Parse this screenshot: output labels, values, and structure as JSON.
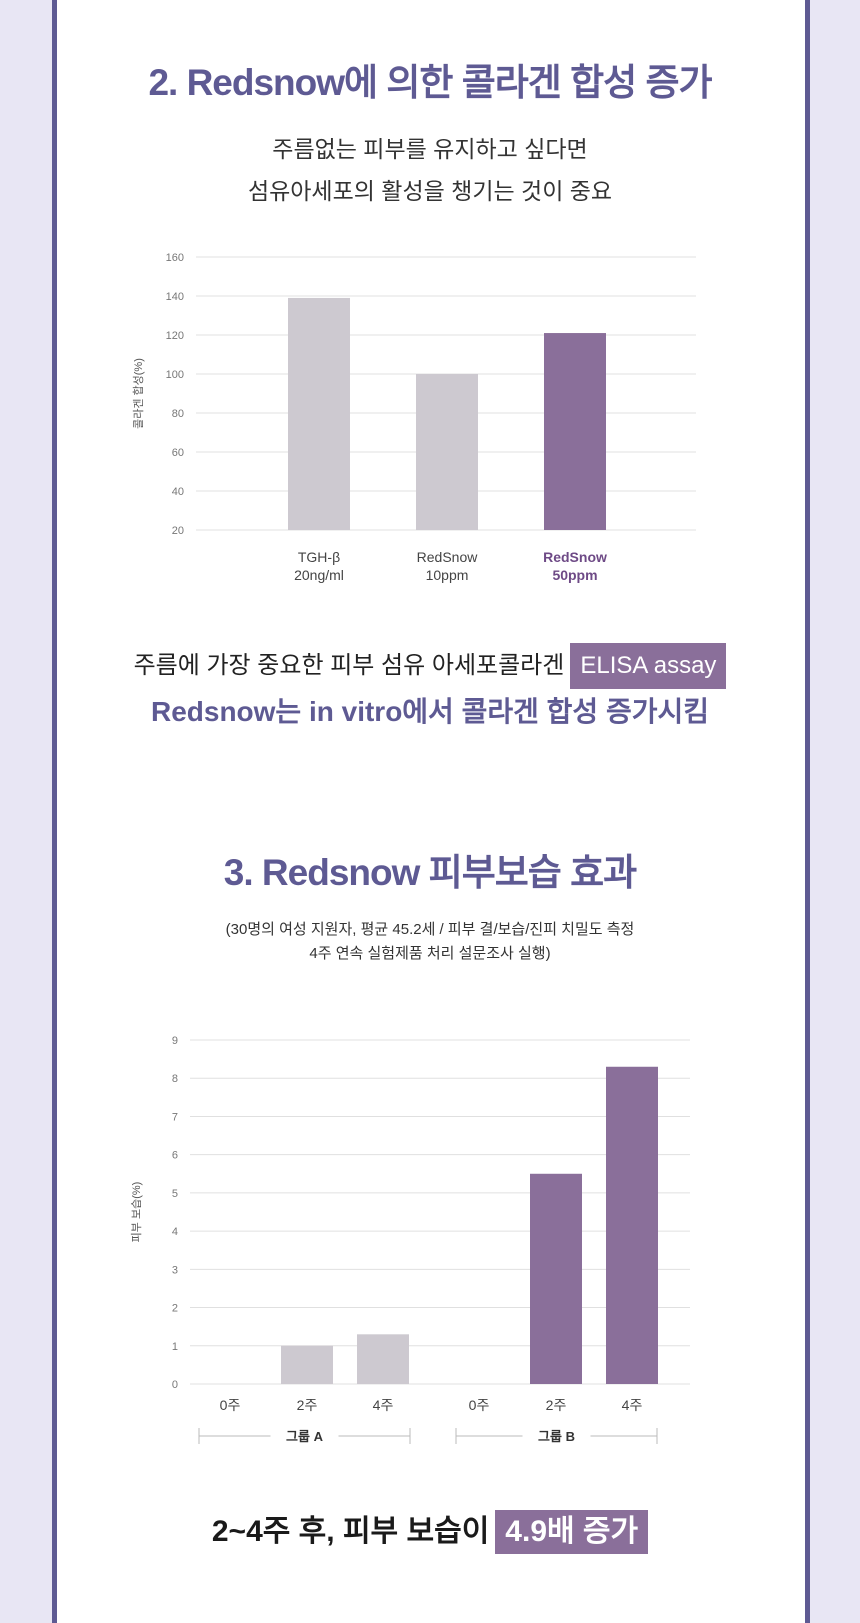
{
  "section2": {
    "title": "2. Redsnow에 의한 콜라겐 합성 증가",
    "subtitle_line1": "주름없는 피부를 유지하고 싶다면",
    "subtitle_line2": "섬유아세포의 활성을 챙기는 것이 중요",
    "caption_line1": "주름에 가장 중요한 피부 섬유 아세포콜라겐",
    "caption_badge": "ELISA assay",
    "caption_line2": "Redsnow는 in vitro에서 콜라겐 합성 증가시킴"
  },
  "section3": {
    "title": "3. Redsnow 피부보습 효과",
    "note_line1": "(30명의 여성 지원자, 평균 45.2세 / 피부 결/보습/진피 치밀도 측정",
    "note_line2": "4주 연속 실험제품 처리 설문조사 실행)",
    "final_text": "2~4주 후, 피부 보습이",
    "final_badge": "4.9배 증가"
  },
  "colors": {
    "accent": "#5e5a93",
    "bar_gray": "#cdc9d0",
    "bar_purple": "#8a6f9a",
    "highlight_label": "#6e4a86",
    "background": "#e8e6f4"
  },
  "chart_data": [
    {
      "type": "bar",
      "ylabel": "콜라겐 합성(%)",
      "ylim": [
        20,
        160
      ],
      "yticks": [
        20,
        40,
        60,
        80,
        100,
        120,
        140,
        160
      ],
      "grid": true,
      "categories": [
        [
          "TGH-β",
          "20ng/ml"
        ],
        [
          "RedSnow",
          "10ppm"
        ],
        [
          "RedSnow",
          "50ppm"
        ]
      ],
      "values": [
        139,
        100,
        121
      ],
      "highlight": [
        false,
        false,
        true
      ]
    },
    {
      "type": "bar",
      "ylabel": "피부 보습(%)",
      "ylim": [
        0,
        9
      ],
      "yticks": [
        0,
        1,
        2,
        3,
        4,
        5,
        6,
        7,
        8,
        9
      ],
      "grid": true,
      "groups": [
        {
          "name": "그룹 A",
          "categories": [
            "0주",
            "2주",
            "4주"
          ],
          "values": [
            0,
            1,
            1.3
          ],
          "highlight": false
        },
        {
          "name": "그룹 B",
          "categories": [
            "0주",
            "2주",
            "4주"
          ],
          "values": [
            0,
            5.5,
            8.3
          ],
          "highlight": true
        }
      ]
    }
  ]
}
